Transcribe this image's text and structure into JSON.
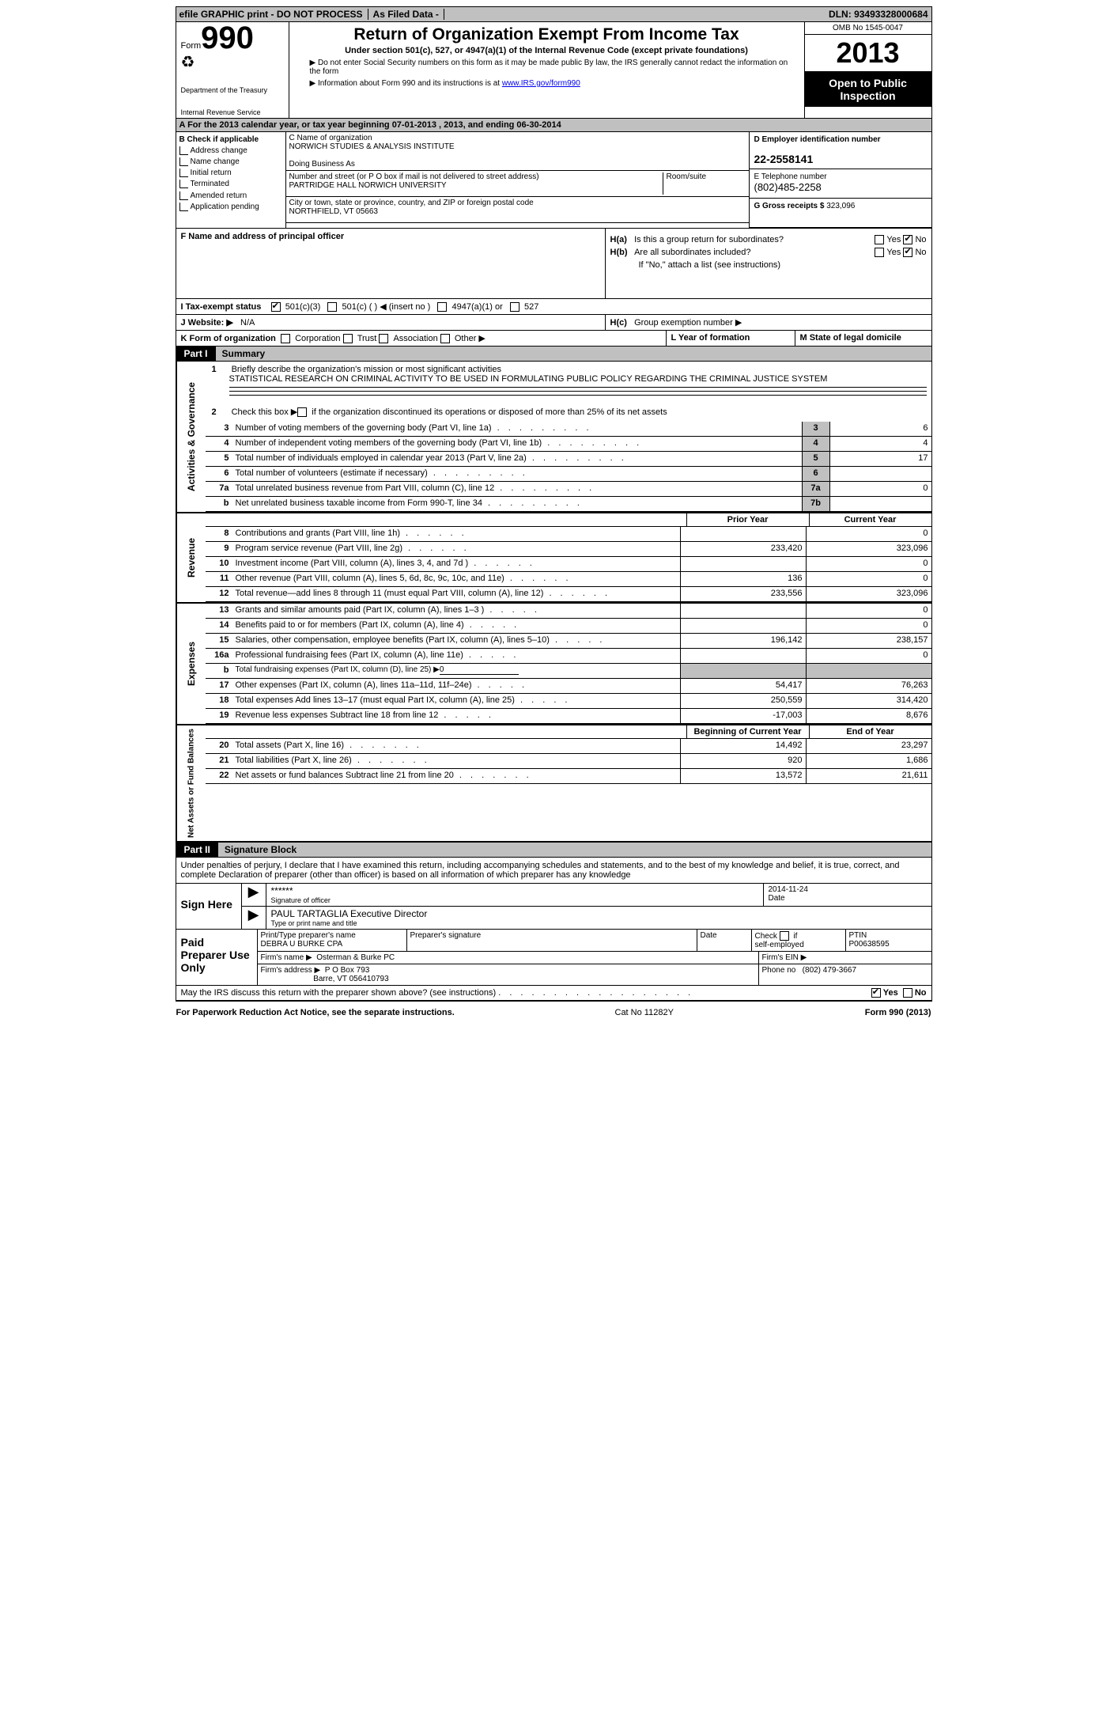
{
  "topbar": {
    "efile": "efile GRAPHIC print - DO NOT PROCESS",
    "asfiled": "As Filed Data -",
    "dln_label": "DLN:",
    "dln": "93493328000684"
  },
  "header": {
    "form_word": "Form",
    "form_number": "990",
    "dept1": "Department of the Treasury",
    "dept2": "Internal Revenue Service",
    "title": "Return of Organization Exempt From Income Tax",
    "subtitle": "Under section 501(c), 527, or 4947(a)(1) of the Internal Revenue Code (except private foundations)",
    "note1": "▶ Do not enter Social Security numbers on this form as it may be made public  By law, the IRS generally cannot redact the information on the form",
    "note2_prefix": "▶ Information about Form 990 and its instructions is at ",
    "note2_link": "www.IRS.gov/form990",
    "omb": "OMB No 1545-0047",
    "year": "2013",
    "inspection": "Open to Public Inspection"
  },
  "row_a": "A  For the 2013 calendar year, or tax year beginning 07-01-2013      , 2013, and ending 06-30-2014",
  "col_b": {
    "title": "B  Check if applicable",
    "items": [
      "Address change",
      "Name change",
      "Initial return",
      "Terminated",
      "Amended return",
      "Application pending"
    ]
  },
  "col_c": {
    "name_label": "C Name of organization",
    "name": "NORWICH STUDIES & ANALYSIS INSTITUTE",
    "dba_label": "Doing Business As",
    "addr1_label": "Number and street (or P O  box if mail is not delivered to street address)",
    "room_label": "Room/suite",
    "addr1": "PARTRIDGE HALL NORWICH UNIVERSITY",
    "addr2_label": "City or town, state or province, country, and ZIP or foreign postal code",
    "addr2": "NORTHFIELD, VT   05663"
  },
  "col_d": {
    "ein_label": "D Employer identification number",
    "ein": "22-2558141",
    "phone_label": "E Telephone number",
    "phone": "(802)485-2258",
    "gross_label": "G Gross receipts $",
    "gross": "323,096"
  },
  "col_f": {
    "label": "F    Name and address of principal officer"
  },
  "col_h": {
    "ha_label": "H(a)",
    "ha_text": "Is this a group return for subordinates?",
    "hb_label": "H(b)",
    "hb_text": "Are all subordinates included?",
    "hb_note": "If \"No,\" attach a list  (see instructions)",
    "hc_label": "H(c)",
    "hc_text": "Group exemption number ▶",
    "yes": "Yes",
    "no": "No"
  },
  "row_i": {
    "label": "I    Tax-exempt status",
    "opts": [
      "501(c)(3)",
      "501(c) (   ) ◀ (insert no )",
      "4947(a)(1) or",
      "527"
    ]
  },
  "row_j": {
    "label": "J   Website: ▶",
    "value": "N/A"
  },
  "row_k": {
    "label": "K Form of organization",
    "opts": [
      "Corporation",
      "Trust",
      "Association",
      "Other ▶"
    ],
    "l_label": "L Year of formation",
    "m_label": "M State of legal domicile"
  },
  "part1": {
    "label": "Part I",
    "title": "Summary"
  },
  "summary": {
    "q1_label": "1",
    "q1": "Briefly describe the organization's mission or most significant activities",
    "q1_text": "STATISTICAL RESEARCH ON CRIMINAL ACTIVITY TO BE USED IN FORMULATING PUBLIC POLICY REGARDING THE CRIMINAL JUSTICE SYSTEM",
    "q2_label": "2",
    "q2": "Check this box ▶       if the organization discontinued its operations or disposed of more than 25% of its net assets",
    "rows_gov": [
      {
        "n": "3",
        "d": "Number of voting members of the governing body (Part VI, line 1a)",
        "b": "3",
        "v": "6"
      },
      {
        "n": "4",
        "d": "Number of independent voting members of the governing body (Part VI, line 1b)",
        "b": "4",
        "v": "4"
      },
      {
        "n": "5",
        "d": "Total number of individuals employed in calendar year 2013 (Part V, line 2a)",
        "b": "5",
        "v": "17"
      },
      {
        "n": "6",
        "d": "Total number of volunteers (estimate if necessary)",
        "b": "6",
        "v": ""
      },
      {
        "n": "7a",
        "d": "Total unrelated business revenue from Part VIII, column (C), line 12",
        "b": "7a",
        "v": "0"
      },
      {
        "n": "b",
        "d": "Net unrelated business taxable income from Form 990-T, line 34",
        "b": "7b",
        "v": ""
      }
    ],
    "col_prior": "Prior Year",
    "col_current": "Current Year",
    "side_gov": "Activities & Governance",
    "side_rev": "Revenue",
    "side_exp": "Expenses",
    "side_net": "Net Assets or Fund Balances",
    "rows_rev": [
      {
        "n": "8",
        "d": "Contributions and grants (Part VIII, line 1h)",
        "p": "",
        "c": "0"
      },
      {
        "n": "9",
        "d": "Program service revenue (Part VIII, line 2g)",
        "p": "233,420",
        "c": "323,096"
      },
      {
        "n": "10",
        "d": "Investment income (Part VIII, column (A), lines 3, 4, and 7d )",
        "p": "",
        "c": "0"
      },
      {
        "n": "11",
        "d": "Other revenue (Part VIII, column (A), lines 5, 6d, 8c, 9c, 10c, and 11e)",
        "p": "136",
        "c": "0"
      },
      {
        "n": "12",
        "d": "Total revenue—add lines 8 through 11 (must equal Part VIII, column (A), line 12)",
        "p": "233,556",
        "c": "323,096"
      }
    ],
    "rows_exp": [
      {
        "n": "13",
        "d": "Grants and similar amounts paid (Part IX, column (A), lines 1–3 )",
        "p": "",
        "c": "0"
      },
      {
        "n": "14",
        "d": "Benefits paid to or for members (Part IX, column (A), line 4)",
        "p": "",
        "c": "0"
      },
      {
        "n": "15",
        "d": "Salaries, other compensation, employee benefits (Part IX, column (A), lines 5–10)",
        "p": "196,142",
        "c": "238,157"
      },
      {
        "n": "16a",
        "d": "Professional fundraising fees (Part IX, column (A), line 11e)",
        "p": "",
        "c": "0"
      },
      {
        "n": "b",
        "d": "Total fundraising expenses (Part IX, column (D), line 25)  ▶",
        "p": "blank",
        "c": "blank",
        "special": true,
        "underline": "0"
      },
      {
        "n": "17",
        "d": "Other expenses (Part IX, column (A), lines 11a–11d, 11f–24e)",
        "p": "54,417",
        "c": "76,263"
      },
      {
        "n": "18",
        "d": "Total expenses  Add lines 13–17 (must equal Part IX, column (A), line 25)",
        "p": "250,559",
        "c": "314,420"
      },
      {
        "n": "19",
        "d": "Revenue less expenses  Subtract line 18 from line 12",
        "p": "-17,003",
        "c": "8,676"
      }
    ],
    "col_begin": "Beginning of Current Year",
    "col_end": "End of Year",
    "rows_net": [
      {
        "n": "20",
        "d": "Total assets (Part X, line 16)",
        "p": "14,492",
        "c": "23,297"
      },
      {
        "n": "21",
        "d": "Total liabilities (Part X, line 26)",
        "p": "920",
        "c": "1,686"
      },
      {
        "n": "22",
        "d": "Net assets or fund balances  Subtract line 21 from line 20",
        "p": "13,572",
        "c": "21,611"
      }
    ]
  },
  "part2": {
    "label": "Part II",
    "title": "Signature Block"
  },
  "perjury": "Under penalties of perjury, I declare that I have examined this return, including accompanying schedules and statements, and to the best of my knowledge and belief, it is true, correct, and complete  Declaration of preparer (other than officer) is based on all information of which preparer has any knowledge",
  "sign": {
    "here": "Sign Here",
    "sig_value": "******",
    "sig_label": "Signature of officer",
    "date_value": "2014-11-24",
    "date_label": "Date",
    "name_value": "PAUL TARTAGLIA Executive Director",
    "name_label": "Type or print name and title"
  },
  "preparer": {
    "here": "Paid Preparer Use Only",
    "name_label": "Print/Type preparer's name",
    "name": "DEBRA U BURKE CPA",
    "sig_label": "Preparer's signature",
    "date_label": "Date",
    "check_label": "Check         if self-employed",
    "ptin_label": "PTIN",
    "ptin": "P00638595",
    "firm_label": "Firm's name     ▶",
    "firm": "Osterman & Burke PC",
    "ein_label": "Firm's EIN ▶",
    "addr_label": "Firm's address ▶",
    "addr1": "P O Box 793",
    "addr2": "Barre, VT  056410793",
    "phone_label": "Phone no",
    "phone": "(802) 479-3667"
  },
  "discuss": {
    "text": "May the IRS discuss this return with the preparer shown above? (see instructions)",
    "yes": "Yes",
    "no": "No"
  },
  "footer": {
    "left": "For Paperwork Reduction Act Notice, see the separate instructions.",
    "mid": "Cat No  11282Y",
    "right": "Form 990 (2013)"
  }
}
